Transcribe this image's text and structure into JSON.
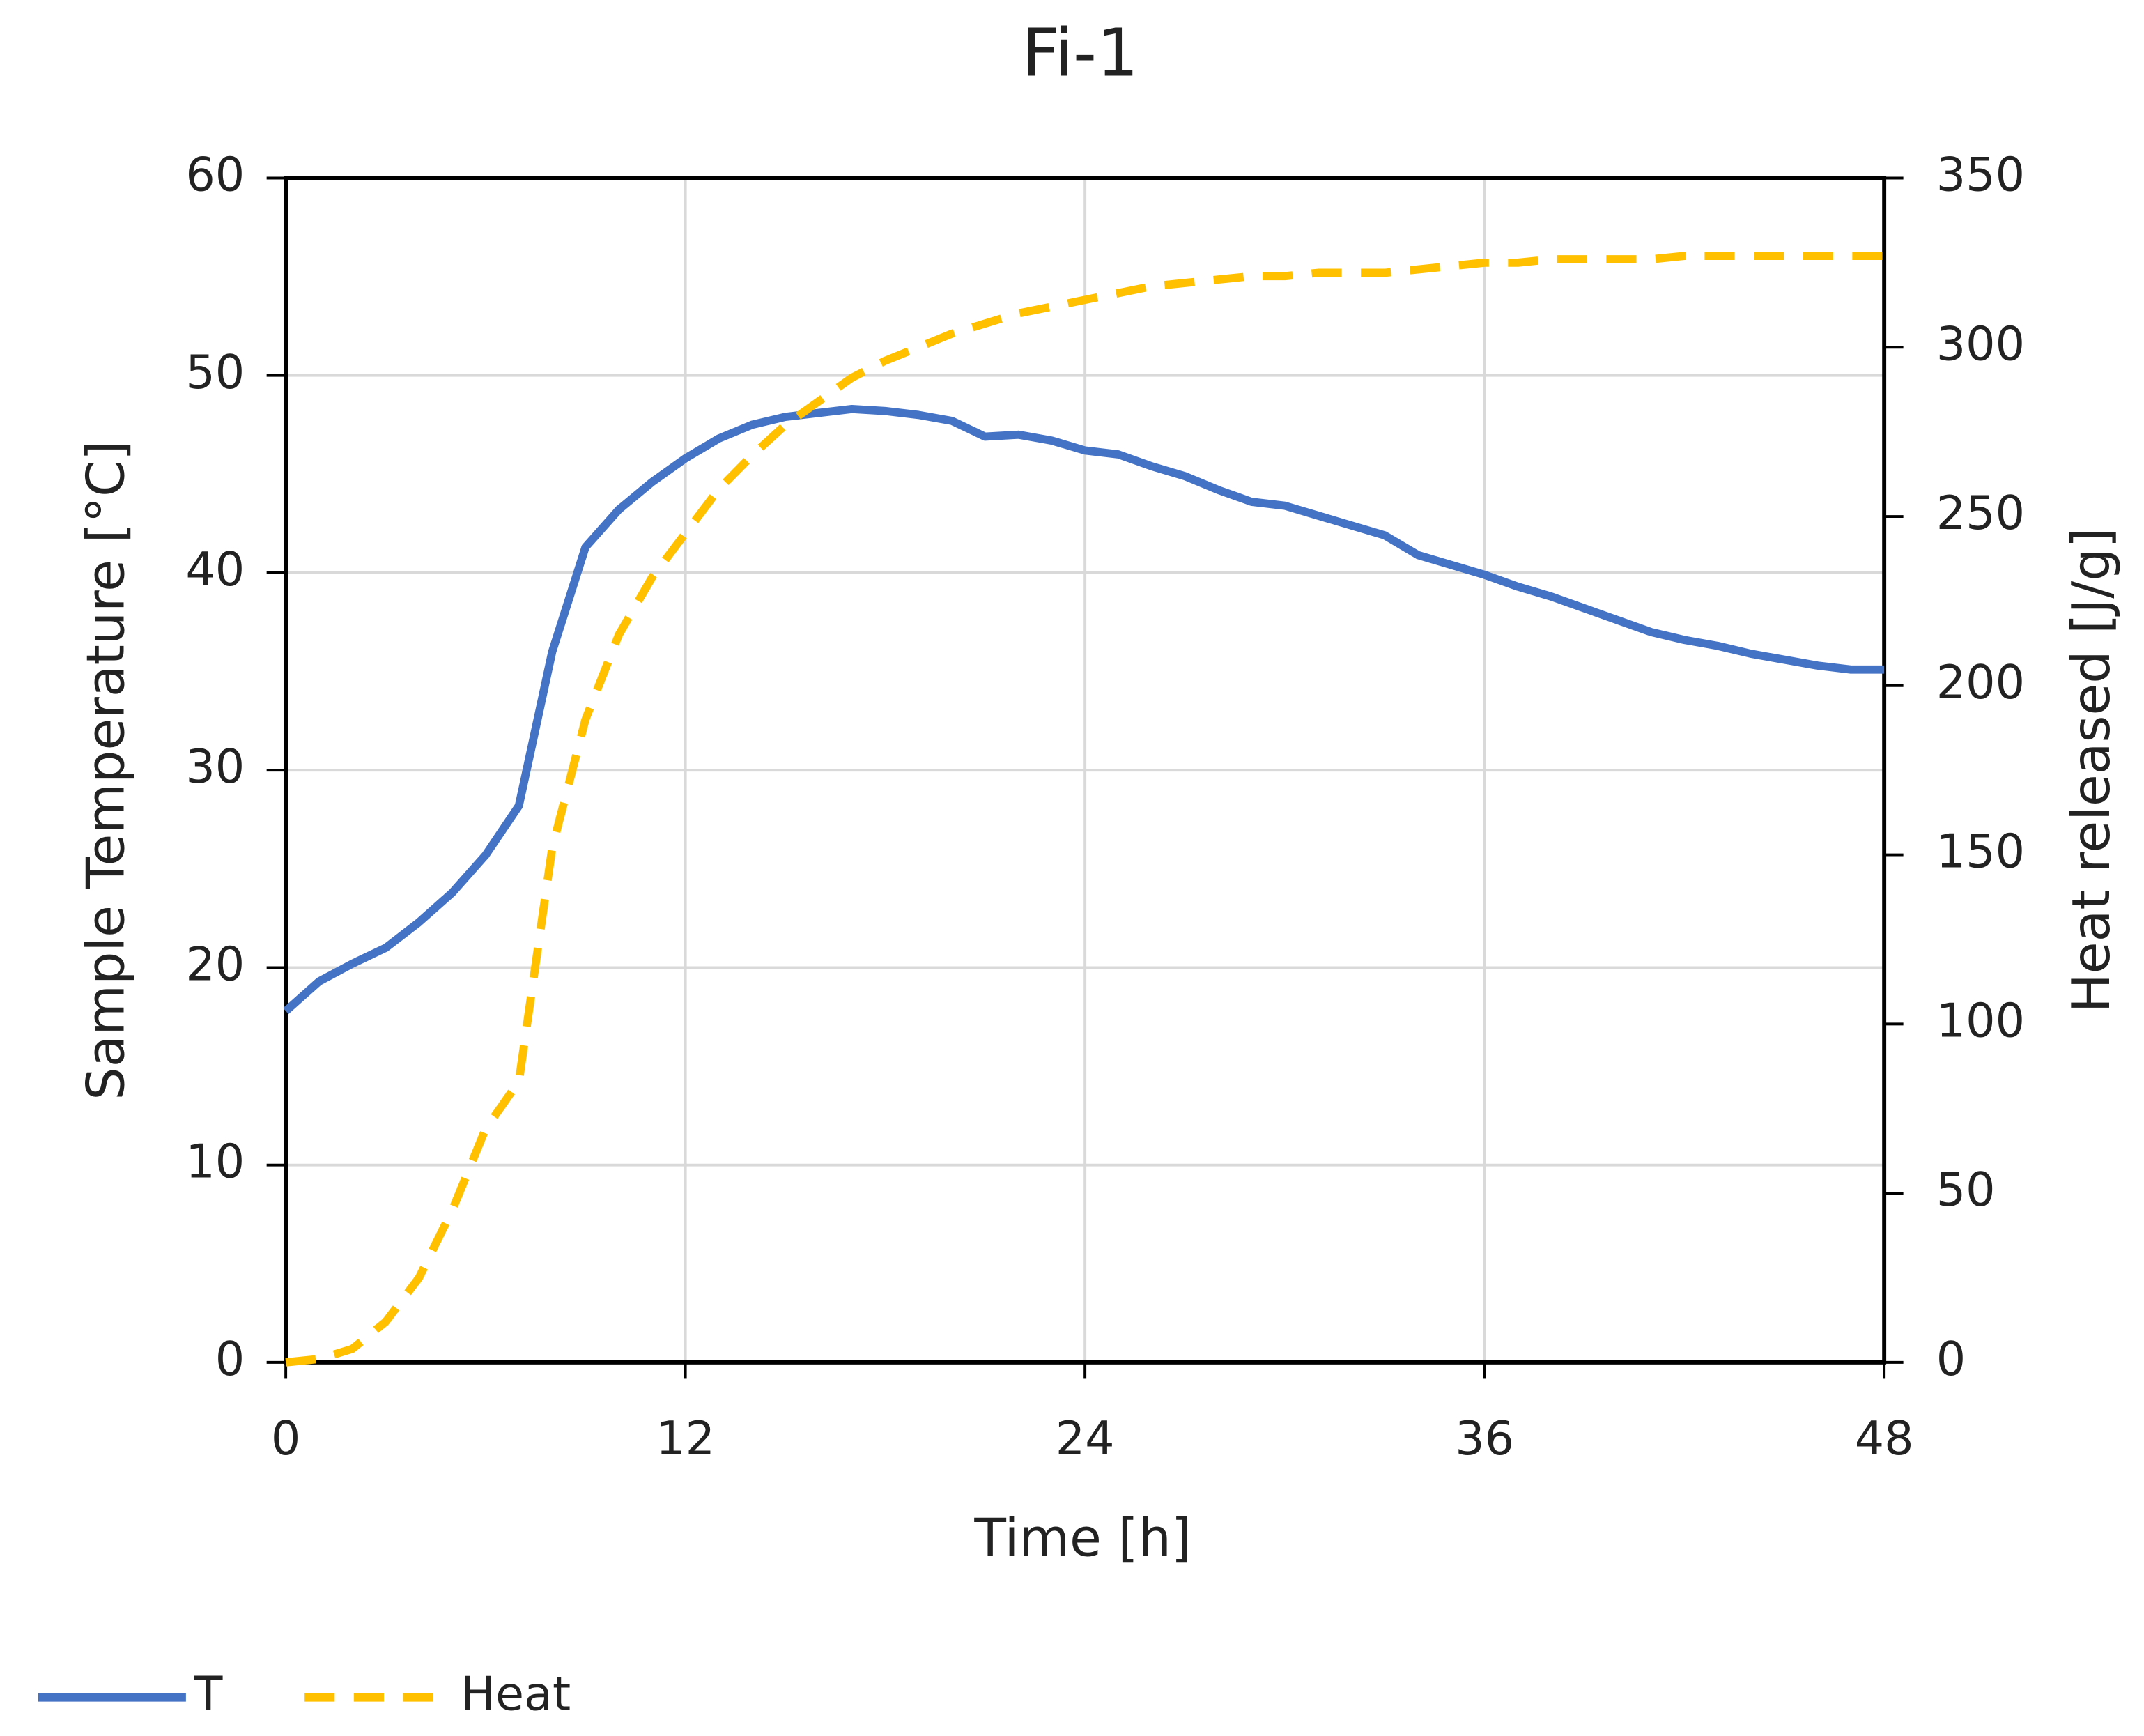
{
  "chart_data": {
    "type": "line",
    "title": "Fi-1",
    "x_label": "Time [h]",
    "y_label": "Sample Temperature [°C]",
    "y2_label": "Heat released [J/g]",
    "x": [
      0,
      1,
      2,
      3,
      4,
      5,
      6,
      7,
      8,
      9,
      10,
      11,
      12,
      13,
      14,
      15,
      16,
      17,
      18,
      19,
      20,
      21,
      22,
      23,
      24,
      25,
      26,
      27,
      28,
      29,
      30,
      31,
      32,
      33,
      34,
      35,
      36,
      37,
      38,
      39,
      40,
      41,
      42,
      43,
      44,
      45,
      46,
      47,
      48
    ],
    "series": [
      {
        "name": "T",
        "color": "#4472c4",
        "line_style": "solid",
        "values": [
          17.8,
          19.3,
          20.2,
          21.0,
          22.3,
          23.8,
          25.7,
          28.2,
          36.0,
          41.3,
          43.2,
          44.6,
          45.8,
          46.8,
          47.5,
          47.9,
          48.1,
          48.3,
          48.2,
          48.0,
          47.7,
          46.9,
          47.0,
          46.7,
          46.2,
          46.0,
          45.4,
          44.9,
          44.2,
          43.6,
          43.4,
          42.9,
          42.4,
          41.9,
          40.9,
          40.4,
          39.9,
          39.3,
          38.8,
          38.2,
          37.6,
          37.0,
          36.6,
          36.3,
          35.9,
          35.6,
          35.3,
          35.1,
          35.1
        ]
      },
      {
        "name": "Heat",
        "color": "#ffc000",
        "line_style": "dashed",
        "axis": "y2",
        "values": [
          0,
          1,
          4,
          12,
          25,
          45,
          69,
          83,
          152,
          190,
          215,
          232,
          245,
          258,
          268,
          277,
          284,
          291,
          296,
          300,
          304,
          307,
          310,
          312,
          314,
          316,
          318,
          319,
          320,
          321,
          321,
          322,
          322,
          322,
          323,
          324,
          325,
          325,
          326,
          326,
          326,
          326,
          327,
          327,
          327,
          327,
          327,
          327,
          327
        ]
      }
    ],
    "xlim": [
      0,
      48
    ],
    "xticks": [
      0,
      12,
      24,
      36,
      48
    ],
    "ylim": [
      0,
      60
    ],
    "yticks": [
      0,
      10,
      20,
      30,
      40,
      50,
      60
    ],
    "y2lim": [
      0,
      350
    ],
    "y2ticks": [
      0,
      50,
      100,
      150,
      200,
      250,
      300,
      350
    ],
    "grid": true,
    "legend": "bottom-left"
  }
}
